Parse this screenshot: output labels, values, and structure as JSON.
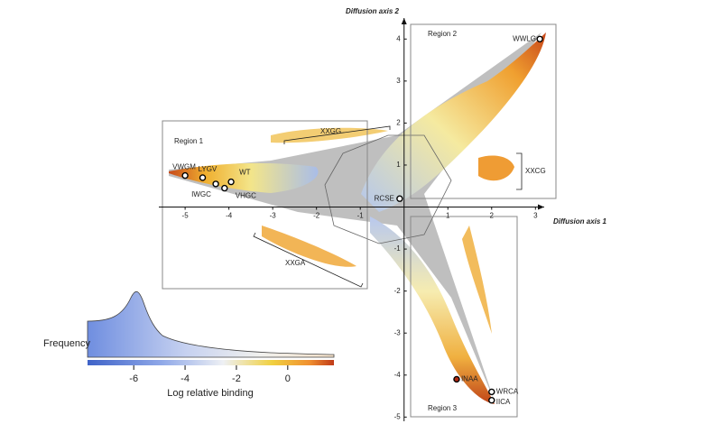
{
  "chart_data": {
    "type": "scatter",
    "x_label": "Diffusion axis 1",
    "y_label": "Diffusion axis 2",
    "xlim": [
      -5.6,
      3.2
    ],
    "ylim": [
      -5.1,
      4.5
    ],
    "xticks": [
      -5,
      -4,
      -3,
      -2,
      -1,
      1,
      2,
      3
    ],
    "yticks": [
      4,
      3,
      2,
      1,
      -1,
      -2,
      -3,
      -4,
      -5
    ],
    "points": {
      "labels": [
        "WWLG",
        "VWGM",
        "LYGV",
        "WT",
        "IWGC",
        "VHGC",
        "RCSE",
        "INAA",
        "WRCA",
        "IICA"
      ],
      "x": [
        3.1,
        -5.0,
        -4.6,
        -3.95,
        -4.3,
        -4.1,
        -0.1,
        1.2,
        2.0,
        2.0
      ],
      "y": [
        4.0,
        0.75,
        0.7,
        0.6,
        0.55,
        0.45,
        0.2,
        -4.1,
        -4.4,
        -4.6
      ]
    },
    "regions": [
      "Region 1",
      "Region 2",
      "Region 3"
    ],
    "groups": [
      "XXGG",
      "XXCG",
      "XXGA"
    ],
    "colorbar": {
      "label": "Log relative binding",
      "histogram_label": "Frequency",
      "lim": [
        -7.8,
        1.8
      ],
      "ticks": [
        -6,
        -4,
        -2,
        0
      ]
    }
  }
}
